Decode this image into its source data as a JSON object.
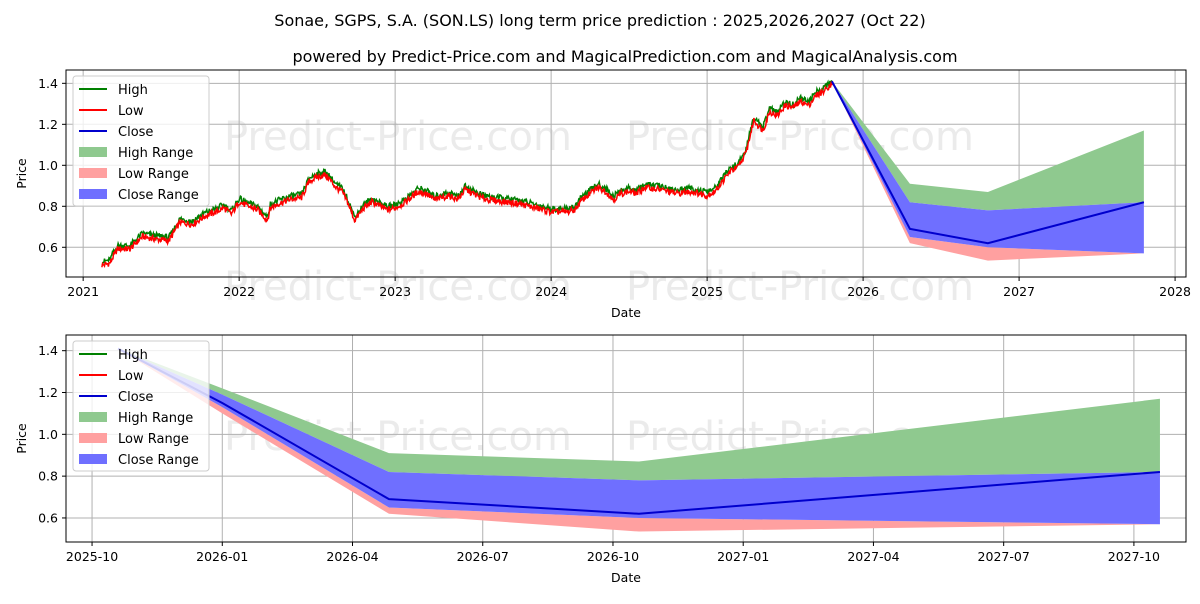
{
  "title": "Sonae, SGPS, S.A. (SON.LS) long term price prediction : 2025,2026,2027 (Oct 22)",
  "subtitle": "powered by Predict-Price.com and MagicalPrediction.com and MagicalAnalysis.com",
  "watermark": "Predict-Price.com",
  "colors": {
    "high": "#008000",
    "low": "#ff0000",
    "close": "#0000cd",
    "high_range": "#8fc98f",
    "low_range": "#ffa0a0",
    "close_range": "#6f6fff"
  },
  "legend": [
    "High",
    "Low",
    "Close",
    "High Range",
    "Low Range",
    "Close Range"
  ],
  "chart_data": [
    {
      "type": "line",
      "id": "overview",
      "xlabel": "Date",
      "ylabel": "Price",
      "xlim": [
        2020.89,
        2028.07
      ],
      "ylim": [
        0.455,
        1.465
      ],
      "x_ticks": [
        2021,
        2022,
        2023,
        2024,
        2025,
        2026,
        2027,
        2028
      ],
      "x_tick_labels": [
        "2021",
        "2022",
        "2023",
        "2024",
        "2025",
        "2026",
        "2027",
        "2028"
      ],
      "y_ticks": [
        0.6,
        0.8,
        1.0,
        1.2,
        1.4
      ],
      "y_tick_labels": [
        "0.6",
        "0.8",
        "1.0",
        "1.2",
        "1.4"
      ],
      "grid": true,
      "legend_position": "top-left",
      "history": {
        "x": [
          2021.12,
          2021.17,
          2021.22,
          2021.3,
          2021.38,
          2021.45,
          2021.55,
          2021.62,
          2021.7,
          2021.78,
          2021.85,
          2021.9,
          2021.95,
          2022.0,
          2022.05,
          2022.12,
          2022.18,
          2022.2,
          2022.25,
          2022.32,
          2022.4,
          2022.45,
          2022.5,
          2022.55,
          2022.58,
          2022.62,
          2022.66,
          2022.7,
          2022.74,
          2022.8,
          2022.85,
          2022.9,
          2022.95,
          2023.0,
          2023.05,
          2023.1,
          2023.15,
          2023.2,
          2023.25,
          2023.35,
          2023.4,
          2023.45,
          2023.5,
          2023.55,
          2023.6,
          2023.7,
          2023.8,
          2023.9,
          2024.0,
          2024.1,
          2024.15,
          2024.2,
          2024.3,
          2024.35,
          2024.4,
          2024.45,
          2024.5,
          2024.55,
          2024.6,
          2024.7,
          2024.8,
          2024.9,
          2025.0,
          2025.05,
          2025.1,
          2025.15,
          2025.2,
          2025.25,
          2025.3,
          2025.33,
          2025.36,
          2025.4,
          2025.45,
          2025.5,
          2025.55,
          2025.6,
          2025.65,
          2025.7,
          2025.75,
          2025.8
        ],
        "close": [
          0.52,
          0.53,
          0.6,
          0.6,
          0.66,
          0.65,
          0.64,
          0.73,
          0.72,
          0.76,
          0.78,
          0.8,
          0.77,
          0.83,
          0.81,
          0.79,
          0.74,
          0.8,
          0.82,
          0.84,
          0.85,
          0.93,
          0.95,
          0.96,
          0.94,
          0.9,
          0.88,
          0.82,
          0.74,
          0.8,
          0.83,
          0.81,
          0.79,
          0.8,
          0.82,
          0.85,
          0.88,
          0.87,
          0.84,
          0.86,
          0.84,
          0.89,
          0.87,
          0.85,
          0.84,
          0.83,
          0.82,
          0.8,
          0.78,
          0.78,
          0.79,
          0.84,
          0.9,
          0.88,
          0.84,
          0.87,
          0.88,
          0.87,
          0.9,
          0.89,
          0.87,
          0.88,
          0.86,
          0.88,
          0.93,
          0.98,
          1.0,
          1.07,
          1.23,
          1.2,
          1.18,
          1.27,
          1.25,
          1.3,
          1.29,
          1.32,
          1.3,
          1.35,
          1.37,
          1.41
        ]
      },
      "forecast": {
        "x": [
          2025.8,
          2026.3,
          2026.8,
          2027.8
        ],
        "close": [
          1.41,
          0.69,
          0.62,
          0.82
        ],
        "high_upper": [
          1.41,
          0.91,
          0.87,
          1.17
        ],
        "close_upper": [
          1.41,
          0.82,
          0.78,
          0.82
        ],
        "close_lower": [
          1.41,
          0.65,
          0.6,
          0.57
        ],
        "low_lower": [
          1.41,
          0.62,
          0.535,
          0.57
        ]
      }
    },
    {
      "type": "line",
      "id": "forecast-detail",
      "xlabel": "Date",
      "ylabel": "Price",
      "xlim": [
        2025.7,
        2027.85
      ],
      "ylim": [
        0.485,
        1.475
      ],
      "x_ticks": [
        2025.75,
        2026.0,
        2026.25,
        2026.5,
        2026.75,
        2027.0,
        2027.25,
        2027.5,
        2027.75
      ],
      "x_tick_labels": [
        "2025-10",
        "2026-01",
        "2026-04",
        "2026-07",
        "2026-10",
        "2027-01",
        "2027-04",
        "2027-07",
        "2027-10"
      ],
      "y_ticks": [
        0.6,
        0.8,
        1.0,
        1.2,
        1.4
      ],
      "y_tick_labels": [
        "0.6",
        "0.8",
        "1.0",
        "1.2",
        "1.4"
      ],
      "grid": true,
      "legend_position": "top-left",
      "forecast": {
        "x": [
          2025.8,
          2026.0,
          2026.32,
          2026.8,
          2027.8
        ],
        "close": [
          1.41,
          1.15,
          0.69,
          0.62,
          0.82
        ],
        "high_upper": [
          1.41,
          1.22,
          0.91,
          0.87,
          1.17
        ],
        "close_upper": [
          1.41,
          1.19,
          0.82,
          0.78,
          0.82
        ],
        "close_lower": [
          1.41,
          1.13,
          0.65,
          0.6,
          0.57
        ],
        "low_lower": [
          1.41,
          1.1,
          0.62,
          0.535,
          0.57
        ]
      }
    }
  ]
}
